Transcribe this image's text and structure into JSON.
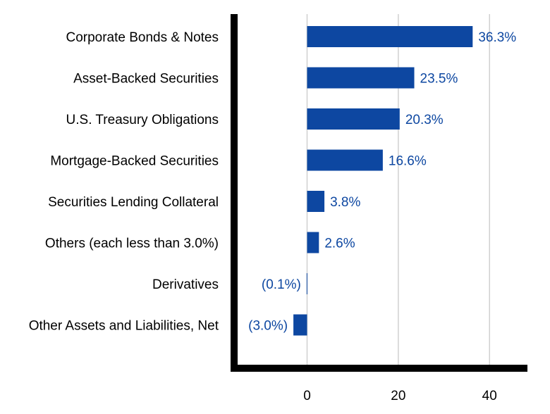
{
  "chart_data": {
    "type": "bar",
    "orientation": "horizontal",
    "categories": [
      "Corporate Bonds & Notes",
      "Asset-Backed Securities",
      "U.S. Treasury Obligations",
      "Mortgage-Backed Securities",
      "Securities Lending Collateral",
      "Others (each less than 3.0%)",
      "Derivatives",
      "Other Assets and Liabilities, Net"
    ],
    "values": [
      36.3,
      23.5,
      20.3,
      16.6,
      3.8,
      2.6,
      -0.1,
      -3.0
    ],
    "data_labels": [
      "36.3%",
      "23.5%",
      "20.3%",
      "16.6%",
      "3.8%",
      "2.6%",
      "(0.1%)",
      "(3.0%)"
    ],
    "x_ticks": [
      0,
      20,
      40
    ],
    "x_tick_labels": [
      "0",
      "20",
      "40"
    ],
    "xlim": [
      -16,
      48
    ],
    "grid": "vertical",
    "bar_color": "#0d47a1",
    "label_color": "#0d47a1",
    "axis_color": "#000000",
    "grid_color": "#d0d0d0"
  }
}
